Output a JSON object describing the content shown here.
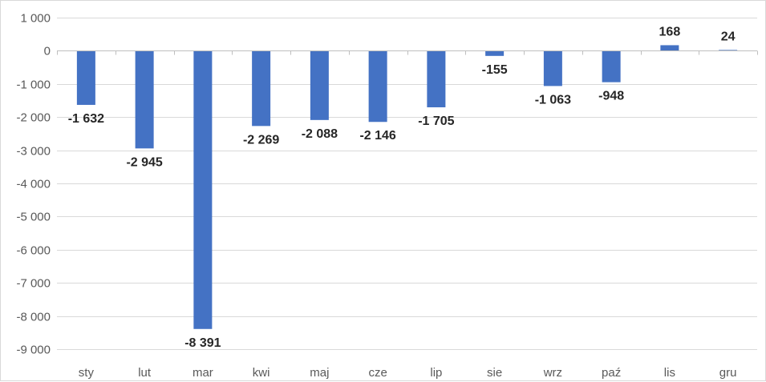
{
  "chart_data": {
    "type": "bar",
    "categories": [
      "sty",
      "lut",
      "mar",
      "kwi",
      "maj",
      "cze",
      "lip",
      "sie",
      "wrz",
      "paź",
      "lis",
      "gru"
    ],
    "values": [
      -1632,
      -2945,
      -8391,
      -2269,
      -2088,
      -2146,
      -1705,
      -155,
      -1063,
      -948,
      168,
      24
    ],
    "data_labels": [
      "-1 632",
      "-2 945",
      "-8 391",
      "-2 269",
      "-2 088",
      "-2 146",
      "-1 705",
      "-155",
      "-1 063",
      "-948",
      "168",
      "24"
    ],
    "yticks": [
      1000,
      0,
      -1000,
      -2000,
      -3000,
      -4000,
      -5000,
      -6000,
      -7000,
      -8000,
      -9000
    ],
    "ytick_labels": [
      "1 000",
      "0",
      "-1 000",
      "-2 000",
      "-3 000",
      "-4 000",
      "-5 000",
      "-6 000",
      "-7 000",
      "-8 000",
      "-9 000"
    ],
    "ylim": [
      -9000,
      1000
    ],
    "title": "",
    "xlabel": "",
    "ylabel": "",
    "grid": true,
    "legend": "none",
    "colors": {
      "bar": "#4472c4",
      "grid": "#d9d9d9",
      "axis": "#bfbfbf",
      "tick_text": "#595959",
      "label_text": "#262626"
    }
  }
}
